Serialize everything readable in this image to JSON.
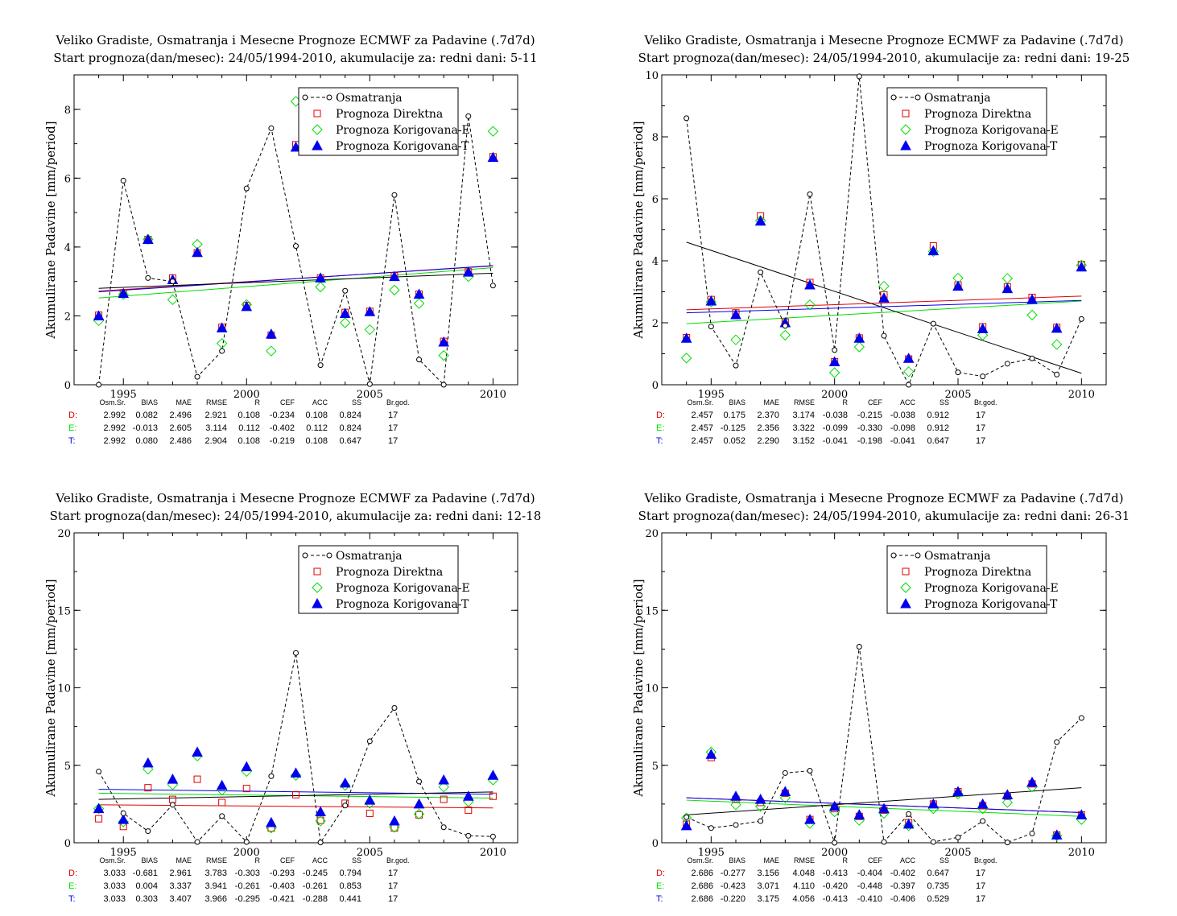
{
  "colors": {
    "obs": "#000000",
    "direct": "#e00000",
    "korE": "#00dd00",
    "korT": "#0000ee"
  },
  "legend": [
    "Osmatranja",
    "Prognoza Direktna",
    "Prognoza Korigovana-E",
    "Prognoza Korigovana-T"
  ],
  "stats_header": [
    "Osm.Sr.",
    "BIAS",
    "MAE",
    "RMSE",
    "R",
    "CEF",
    "ACC",
    "SS",
    "Br.god."
  ],
  "chart_data": [
    {
      "type": "scatter",
      "title": "Veliko Gradiste, Osmatranja i Mesecne Prognoze ECMWF za Padavine (.7d7d)",
      "subtitle": "Start prognoza(dan/mesec): 24/05/1994-2010, akumulacije za: redni dani: 5-11",
      "ylabel": "Akumulirane Padavine [mm/period]",
      "xlabel": "",
      "xlim": [
        1993,
        2011
      ],
      "ylim": [
        0,
        9
      ],
      "yticks": [
        0,
        2,
        4,
        6,
        8
      ],
      "xticks": [
        1995,
        2000,
        2005,
        2010
      ],
      "x": [
        1994,
        1995,
        1996,
        1997,
        1998,
        1999,
        2000,
        2001,
        2002,
        2003,
        2004,
        2005,
        2006,
        2007,
        2008,
        2009,
        2010
      ],
      "series": [
        {
          "name": "Osmatranja",
          "values": [
            0.0,
            5.93,
            3.1,
            3.0,
            0.23,
            0.98,
            5.7,
            7.45,
            4.03,
            0.57,
            2.73,
            0.02,
            5.51,
            0.73,
            0.0,
            7.8,
            2.88
          ]
        },
        {
          "name": "Prognoza Direktna",
          "values": [
            2.02,
            2.67,
            4.22,
            3.1,
            3.83,
            1.67,
            2.3,
            1.44,
            6.97,
            3.1,
            2.1,
            2.13,
            3.16,
            2.63,
            1.26,
            3.28,
            6.62
          ]
        },
        {
          "name": "Prognoza Korigovana-E",
          "values": [
            1.86,
            2.62,
            4.22,
            2.47,
            4.08,
            1.2,
            2.33,
            0.98,
            8.23,
            2.84,
            1.8,
            1.6,
            2.75,
            2.36,
            0.85,
            3.14,
            7.36
          ]
        },
        {
          "name": "Prognoza Korigovana-T",
          "values": [
            2.0,
            2.65,
            4.22,
            3.05,
            3.84,
            1.65,
            2.27,
            1.47,
            6.9,
            3.1,
            2.07,
            2.12,
            3.14,
            2.63,
            1.24,
            3.27,
            6.6
          ]
        }
      ],
      "trends": {
        "obs": [
          2.8,
          3.24
        ],
        "direct": [
          2.72,
          3.45
        ],
        "korE": [
          2.52,
          3.4
        ],
        "korT": [
          2.7,
          3.46
        ]
      },
      "stats": [
        {
          "label": "D:",
          "values": [
            "2.992",
            "0.082",
            "2.496",
            "2.921",
            "0.108",
            "-0.234",
            "0.108",
            "0.824",
            "17"
          ]
        },
        {
          "label": "E:",
          "values": [
            "2.992",
            "-0.013",
            "2.605",
            "3.114",
            "0.112",
            "-0.402",
            "0.112",
            "0.824",
            "17"
          ]
        },
        {
          "label": "T:",
          "values": [
            "2.992",
            "0.080",
            "2.486",
            "2.904",
            "0.108",
            "-0.219",
            "0.108",
            "0.647",
            "17"
          ]
        }
      ]
    },
    {
      "type": "scatter",
      "title": "Veliko Gradiste, Osmatranja i Mesecne Prognoze ECMWF za Padavine (.7d7d)",
      "subtitle": "Start prognoza(dan/mesec): 24/05/1994-2010, akumulacije za: redni dani: 19-25",
      "ylabel": "Akumulirane Padavine [mm/period]",
      "xlabel": "",
      "xlim": [
        1993,
        2011
      ],
      "ylim": [
        0,
        10
      ],
      "yticks": [
        0,
        2,
        4,
        6,
        8,
        10
      ],
      "xticks": [
        1995,
        2000,
        2005,
        2010
      ],
      "x": [
        1994,
        1995,
        1996,
        1997,
        1998,
        1999,
        2000,
        2001,
        2002,
        2003,
        2004,
        2005,
        2006,
        2007,
        2008,
        2009,
        2010
      ],
      "series": [
        {
          "name": "Osmatranja",
          "values": [
            8.6,
            1.88,
            0.62,
            3.63,
            1.9,
            6.15,
            1.12,
            9.95,
            1.58,
            0.0,
            1.97,
            0.4,
            0.27,
            0.68,
            0.85,
            0.33,
            2.12
          ]
        },
        {
          "name": "Prognoza Direktna",
          "values": [
            1.52,
            2.75,
            2.32,
            5.45,
            2.02,
            3.3,
            0.74,
            1.51,
            2.9,
            0.83,
            4.48,
            3.22,
            1.87,
            3.16,
            2.82,
            1.85,
            3.88
          ]
        },
        {
          "name": "Prognoza Korigovana-E",
          "values": [
            0.86,
            2.67,
            1.45,
            5.3,
            1.6,
            2.58,
            0.39,
            1.22,
            3.18,
            0.42,
            4.3,
            3.44,
            1.6,
            3.43,
            2.25,
            1.3,
            3.86
          ]
        },
        {
          "name": "Prognoza Korigovana-T",
          "values": [
            1.5,
            2.7,
            2.26,
            5.28,
            2.0,
            3.22,
            0.74,
            1.5,
            2.8,
            0.85,
            4.32,
            3.18,
            1.81,
            3.1,
            2.75,
            1.82,
            3.8
          ]
        }
      ],
      "trends": {
        "obs": [
          4.6,
          0.37
        ],
        "direct": [
          2.42,
          2.86
        ],
        "korE": [
          1.97,
          2.7
        ],
        "korT": [
          2.32,
          2.72
        ]
      },
      "stats": [
        {
          "label": "D:",
          "values": [
            "2.457",
            "0.175",
            "2.370",
            "3.174",
            "-0.038",
            "-0.215",
            "-0.038",
            "0.912",
            "17"
          ]
        },
        {
          "label": "E:",
          "values": [
            "2.457",
            "-0.125",
            "2.356",
            "3.322",
            "-0.099",
            "-0.330",
            "-0.098",
            "0.912",
            "17"
          ]
        },
        {
          "label": "T:",
          "values": [
            "2.457",
            "0.052",
            "2.290",
            "3.152",
            "-0.041",
            "-0.198",
            "-0.041",
            "0.647",
            "17"
          ]
        }
      ]
    },
    {
      "type": "scatter",
      "title": "Veliko Gradiste, Osmatranja i Mesecne Prognoze ECMWF za Padavine (.7d7d)",
      "subtitle": "Start prognoza(dan/mesec): 24/05/1994-2010, akumulacije za: redni dani: 12-18",
      "ylabel": "Akumulirane Padavine [mm/period]",
      "xlabel": "",
      "xlim": [
        1993,
        2011
      ],
      "ylim": [
        0,
        20
      ],
      "yticks": [
        0,
        5,
        10,
        15,
        20
      ],
      "xticks": [
        1995,
        2000,
        2005,
        2010
      ],
      "x": [
        1994,
        1995,
        1996,
        1997,
        1998,
        1999,
        2000,
        2001,
        2002,
        2003,
        2004,
        2005,
        2006,
        2007,
        2008,
        2009,
        2010
      ],
      "series": [
        {
          "name": "Osmatranja",
          "values": [
            4.6,
            1.9,
            0.75,
            2.45,
            0.05,
            1.72,
            0.05,
            4.3,
            12.25,
            0.02,
            2.4,
            6.55,
            8.7,
            3.95,
            1.0,
            0.45,
            0.4
          ]
        },
        {
          "name": "Prognoza Direktna",
          "values": [
            1.55,
            1.05,
            3.55,
            2.8,
            4.1,
            2.6,
            3.5,
            0.95,
            3.1,
            1.45,
            2.55,
            1.9,
            0.95,
            1.8,
            2.8,
            2.1,
            3.0
          ]
        },
        {
          "name": "Prognoza Korigovana-E",
          "values": [
            2.2,
            1.35,
            4.75,
            3.75,
            5.6,
            3.4,
            4.6,
            0.95,
            4.35,
            1.4,
            3.7,
            2.55,
            1.0,
            1.85,
            3.6,
            2.65,
            4.05
          ]
        },
        {
          "name": "Prognoza Korigovana-T",
          "values": [
            2.2,
            1.5,
            5.15,
            4.1,
            5.85,
            3.7,
            4.9,
            1.3,
            4.5,
            2.0,
            3.85,
            2.75,
            1.4,
            2.5,
            4.05,
            3.0,
            4.35
          ]
        }
      ],
      "trends": {
        "obs": [
          2.8,
          3.28
        ],
        "direct": [
          2.45,
          2.25
        ],
        "korE": [
          3.2,
          2.88
        ],
        "korT": [
          3.45,
          3.13
        ]
      },
      "stats": [
        {
          "label": "D:",
          "values": [
            "3.033",
            "-0.681",
            "2.961",
            "3.783",
            "-0.303",
            "-0.293",
            "-0.245",
            "0.794",
            "17"
          ]
        },
        {
          "label": "E:",
          "values": [
            "3.033",
            "0.004",
            "3.337",
            "3.941",
            "-0.261",
            "-0.403",
            "-0.261",
            "0.853",
            "17"
          ]
        },
        {
          "label": "T:",
          "values": [
            "3.033",
            "0.303",
            "3.407",
            "3.966",
            "-0.295",
            "-0.421",
            "-0.288",
            "0.441",
            "17"
          ]
        }
      ]
    },
    {
      "type": "scatter",
      "title": "Veliko Gradiste, Osmatranja i Mesecne Prognoze ECMWF za Padavine (.7d7d)",
      "subtitle": "Start prognoza(dan/mesec): 24/05/1994-2010, akumulacije za: redni dani: 26-31",
      "ylabel": "Akumulirane Padavine [mm/period]",
      "xlabel": "",
      "xlim": [
        1993,
        2011
      ],
      "ylim": [
        0,
        20
      ],
      "yticks": [
        0,
        5,
        10,
        15,
        20
      ],
      "xticks": [
        1995,
        2000,
        2005,
        2010
      ],
      "x": [
        1994,
        1995,
        1996,
        1997,
        1998,
        1999,
        2000,
        2001,
        2002,
        2003,
        2004,
        2005,
        2006,
        2007,
        2008,
        2009,
        2010
      ],
      "series": [
        {
          "name": "Osmatranja",
          "values": [
            1.65,
            0.95,
            1.15,
            1.4,
            4.5,
            4.65,
            0.0,
            12.65,
            0.05,
            1.85,
            0.05,
            0.35,
            1.4,
            0.02,
            0.6,
            6.5,
            8.05
          ]
        },
        {
          "name": "Prognoza Direktna",
          "values": [
            1.2,
            5.5,
            2.8,
            2.6,
            3.2,
            1.5,
            2.2,
            1.7,
            2.1,
            1.3,
            2.5,
            3.3,
            2.4,
            3.0,
            3.8,
            0.5,
            1.8
          ]
        },
        {
          "name": "Prognoza Korigovana-E",
          "values": [
            1.6,
            5.85,
            2.45,
            2.35,
            2.9,
            1.25,
            2.0,
            1.45,
            1.9,
            1.1,
            2.2,
            3.15,
            2.2,
            2.6,
            3.6,
            0.45,
            1.5
          ]
        },
        {
          "name": "Prognoza Korigovana-T",
          "values": [
            1.1,
            5.7,
            3.0,
            2.8,
            3.3,
            1.5,
            2.35,
            1.8,
            2.2,
            1.2,
            2.5,
            3.3,
            2.5,
            3.1,
            3.9,
            0.5,
            1.8
          ]
        }
      ],
      "trends": {
        "obs": [
          1.8,
          3.55
        ],
        "direct": [
          2.9,
          1.95
        ],
        "korE": [
          2.75,
          1.7
        ],
        "korT": [
          2.9,
          1.95
        ]
      },
      "stats": [
        {
          "label": "D:",
          "values": [
            "2.686",
            "-0.277",
            "3.156",
            "4.048",
            "-0.413",
            "-0.404",
            "-0.402",
            "0.647",
            "17"
          ]
        },
        {
          "label": "E:",
          "values": [
            "2.686",
            "-0.423",
            "3.071",
            "4.110",
            "-0.420",
            "-0.448",
            "-0.397",
            "0.735",
            "17"
          ]
        },
        {
          "label": "T:",
          "values": [
            "2.686",
            "-0.220",
            "3.175",
            "4.056",
            "-0.413",
            "-0.410",
            "-0.406",
            "0.529",
            "17"
          ]
        }
      ]
    }
  ]
}
